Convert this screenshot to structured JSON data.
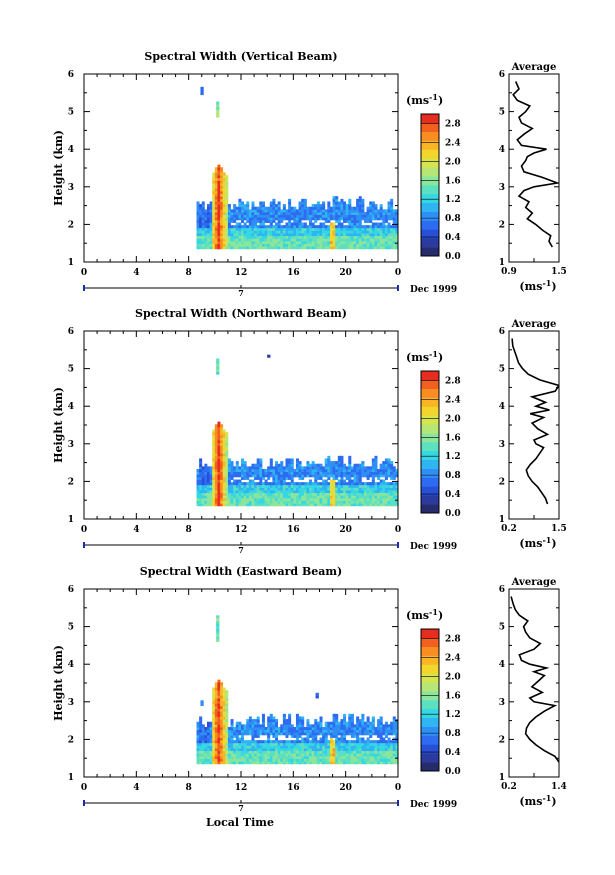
{
  "figure": {
    "xlabel": "Local Time"
  },
  "colorbar": {
    "unit_label": "(ms",
    "unit_exp": "-1",
    "unit_close": ")",
    "stops": [
      "#262b6b",
      "#2a3a9e",
      "#2850d6",
      "#2d6cf0",
      "#2f8ff5",
      "#2fb5f2",
      "#35d7e3",
      "#5de0c0",
      "#8be59b",
      "#b6e676",
      "#d8e44d",
      "#f2d62c",
      "#f9b526",
      "#f88e22",
      "#f2601f",
      "#e52e1f"
    ]
  },
  "chart_data": [
    {
      "type": "heatmap",
      "title": "Spectral Width (Vertical Beam)",
      "ylabel": "Height (km)",
      "xlim": [
        0,
        24
      ],
      "ylim": [
        1,
        6
      ],
      "x_ticks": [
        "0",
        "4",
        "8",
        "12",
        "16",
        "20",
        "0"
      ],
      "y_ticks": [
        "1",
        "2",
        "3",
        "4",
        "5",
        "6"
      ],
      "date_axis": {
        "tick": "7",
        "label": "Dec 1999"
      },
      "colorbar": {
        "range": [
          0,
          3.0
        ],
        "ticks": [
          "0.0",
          "0.4",
          "0.8",
          "1.2",
          "1.6",
          "2.0",
          "2.4",
          "2.8"
        ]
      },
      "profile": {
        "title": "Average",
        "xlabel": "(ms",
        "xlabel_exp": "-1",
        "xlabel_close": ")",
        "x_ticks": [
          "0.9",
          "1.5"
        ],
        "xlim": [
          0.9,
          1.5
        ],
        "heights": [
          1.4,
          1.55,
          1.7,
          1.85,
          2.0,
          2.15,
          2.3,
          2.45,
          2.6,
          2.75,
          2.9,
          3.0,
          3.1,
          3.25,
          3.4,
          3.55,
          3.7,
          3.8,
          3.9,
          4.0,
          4.1,
          4.25,
          4.4,
          4.55,
          4.7,
          4.85,
          5.0,
          5.15,
          5.3,
          5.45,
          5.6,
          5.8
        ],
        "values": [
          1.42,
          1.38,
          1.4,
          1.3,
          1.22,
          1.12,
          1.18,
          1.1,
          1.14,
          1.02,
          1.08,
          1.2,
          1.48,
          1.3,
          1.08,
          1.05,
          1.1,
          1.12,
          1.2,
          1.35,
          1.05,
          1.0,
          1.08,
          1.18,
          1.05,
          1.02,
          1.1,
          1.15,
          1.0,
          0.95,
          1.02,
          0.98
        ]
      }
    },
    {
      "type": "heatmap",
      "title": "Spectral Width (Northward Beam)",
      "ylabel": "Height (km)",
      "xlim": [
        0,
        24
      ],
      "ylim": [
        1,
        6
      ],
      "x_ticks": [
        "0",
        "4",
        "8",
        "12",
        "16",
        "20",
        "0"
      ],
      "y_ticks": [
        "1",
        "2",
        "3",
        "4",
        "5",
        "6"
      ],
      "date_axis": {
        "tick": "7",
        "label": "Dec 1999"
      },
      "colorbar": {
        "range": [
          0,
          3.0
        ],
        "ticks": [
          "0.0",
          "0.4",
          "0.8",
          "1.2",
          "1.6",
          "2.0",
          "2.4",
          "2.8"
        ]
      },
      "profile": {
        "title": "Average",
        "xlabel": "(ms",
        "xlabel_exp": "-1",
        "xlabel_close": ")",
        "x_ticks": [
          "0.2",
          "1.5"
        ],
        "xlim": [
          0.2,
          1.5
        ],
        "heights": [
          1.4,
          1.55,
          1.7,
          1.85,
          2.0,
          2.15,
          2.3,
          2.45,
          2.6,
          2.75,
          2.9,
          3.0,
          3.1,
          3.25,
          3.4,
          3.55,
          3.7,
          3.8,
          3.9,
          4.0,
          4.1,
          4.25,
          4.4,
          4.55,
          4.7,
          4.85,
          5.0,
          5.15,
          5.3,
          5.45,
          5.6,
          5.8
        ],
        "values": [
          1.2,
          1.15,
          1.05,
          0.95,
          0.8,
          0.7,
          0.65,
          0.75,
          0.9,
          1.0,
          1.1,
          0.9,
          0.85,
          1.2,
          0.95,
          0.8,
          1.1,
          0.75,
          1.25,
          0.9,
          1.15,
          0.8,
          1.4,
          1.5,
          1.0,
          0.7,
          0.55,
          0.45,
          0.4,
          0.35,
          0.3,
          0.28
        ]
      }
    },
    {
      "type": "heatmap",
      "title": "Spectral Width (Eastward Beam)",
      "ylabel": "Height (km)",
      "xlim": [
        0,
        24
      ],
      "ylim": [
        1,
        6
      ],
      "x_ticks": [
        "0",
        "4",
        "8",
        "12",
        "16",
        "20",
        "0"
      ],
      "y_ticks": [
        "1",
        "2",
        "3",
        "4",
        "5",
        "6"
      ],
      "date_axis": {
        "tick": "7",
        "label": "Dec 1999"
      },
      "colorbar": {
        "range": [
          0,
          3.0
        ],
        "ticks": [
          "0.0",
          "0.4",
          "0.8",
          "1.2",
          "1.6",
          "2.0",
          "2.4",
          "2.8"
        ]
      },
      "profile": {
        "title": "Average",
        "xlabel": "(ms",
        "xlabel_exp": "-1",
        "xlabel_close": ")",
        "x_ticks": [
          "0.2",
          "1.4"
        ],
        "xlim": [
          0.2,
          1.4
        ],
        "heights": [
          1.4,
          1.55,
          1.7,
          1.85,
          2.0,
          2.15,
          2.3,
          2.45,
          2.6,
          2.75,
          2.9,
          3.0,
          3.1,
          3.25,
          3.4,
          3.55,
          3.7,
          3.8,
          3.9,
          4.0,
          4.1,
          4.25,
          4.4,
          4.55,
          4.7,
          4.85,
          5.0,
          5.15,
          5.3,
          5.45,
          5.6,
          5.8
        ],
        "values": [
          1.4,
          1.3,
          1.05,
          0.85,
          0.7,
          0.6,
          0.62,
          0.7,
          0.85,
          1.05,
          1.3,
          0.8,
          0.7,
          1.0,
          0.75,
          0.9,
          1.05,
          0.8,
          1.1,
          0.7,
          0.5,
          0.45,
          0.8,
          0.95,
          0.7,
          0.6,
          0.55,
          0.65,
          0.45,
          0.35,
          0.3,
          0.25
        ]
      }
    }
  ]
}
